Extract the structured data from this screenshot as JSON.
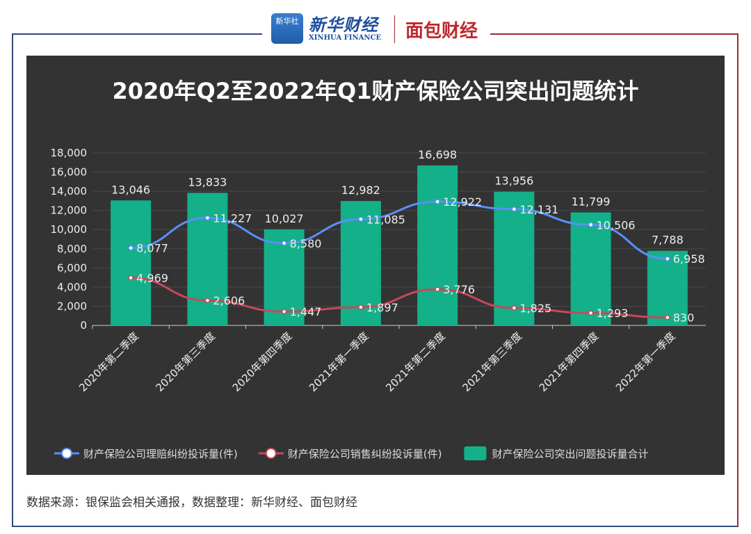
{
  "header": {
    "logo_xinhua_badge": "新华社",
    "logo_xinhua_cn": "新华财经",
    "logo_xinhua_en": "XINHUA FINANCE",
    "logo_mianbao": "面包财经"
  },
  "chart_data": {
    "type": "bar+line",
    "title": "2020年Q2至2022年Q1财产保险公司突出问题统计",
    "categories": [
      "2020年第二季度",
      "2020年第三季度",
      "2020年第四季度",
      "2021年第一季度",
      "2021年第二季度",
      "2021年第三季度",
      "2021年第四季度",
      "2022年第一季度"
    ],
    "ylim": [
      0,
      18000
    ],
    "yticks": [
      "0",
      "2,000",
      "4,000",
      "6,000",
      "8,000",
      "10,000",
      "12,000",
      "14,000",
      "16,000",
      "18,000"
    ],
    "grid": true,
    "legend_position": "bottom",
    "series": [
      {
        "name": "财产保险公司理赔纠纷投诉量(件)",
        "type": "line",
        "color": "#5b8ff9",
        "values": [
          8077,
          11227,
          8580,
          11085,
          12922,
          12131,
          10506,
          6958
        ],
        "labels": [
          "8,077",
          "11,227",
          "8,580",
          "11,085",
          "12,922",
          "12,131",
          "10,506",
          "6,958"
        ]
      },
      {
        "name": "财产保险公司销售纠纷投诉量(件)",
        "type": "line",
        "color": "#c8485a",
        "values": [
          4969,
          2606,
          1447,
          1897,
          3776,
          1825,
          1293,
          830
        ],
        "labels": [
          "4,969",
          "2,606",
          "1,447",
          "1,897",
          "3,776",
          "1,825",
          "1,293",
          "830"
        ]
      },
      {
        "name": "财产保险公司突出问题投诉量合计",
        "type": "bar",
        "color": "#14b08a",
        "values": [
          13046,
          13833,
          10027,
          12982,
          16698,
          13956,
          11799,
          7788
        ],
        "labels": [
          "13,046",
          "13,833",
          "10,027",
          "12,982",
          "16,698",
          "13,956",
          "11,799",
          "7,788"
        ]
      }
    ]
  },
  "footer": {
    "source": "数据来源：银保监会相关通报，数据整理：新华财经、面包财经"
  }
}
